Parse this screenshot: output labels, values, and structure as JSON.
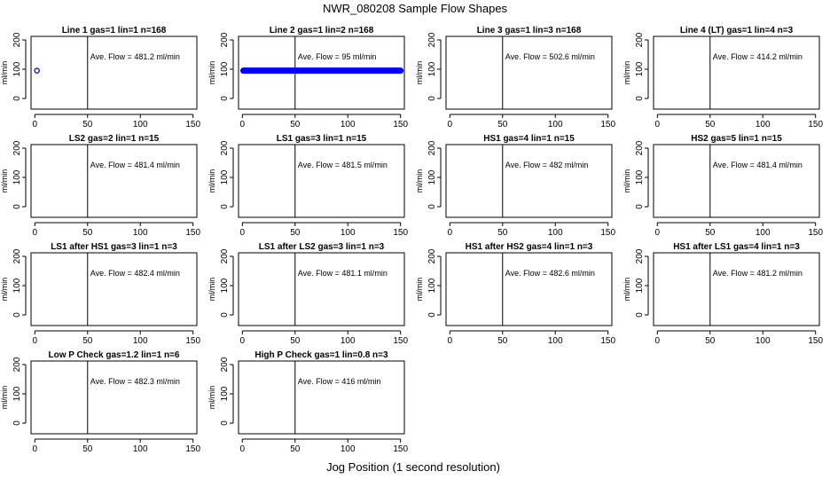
{
  "figure_title": "NWR_080208  Sample Flow Shapes",
  "figure_xlabel": "Jog Position (1 second resolution)",
  "ave_prefix": "Ave. Flow =",
  "ave_unit": "ml/min",
  "panel_ylabel": "ml/min",
  "colors": {
    "points": "#0000ff",
    "axes": "#000000"
  },
  "chart_data": [
    {
      "type": "scatter",
      "title": "Line 1 gas=1 lin=1 n=168",
      "ave_flow": "481.2",
      "xlim": [
        0,
        150
      ],
      "ylim": [
        -30,
        210
      ],
      "xticks": [
        0,
        50,
        100,
        150
      ],
      "yticks": [
        0,
        100,
        200
      ],
      "vline_x": 50,
      "points": [
        {
          "x": 2,
          "y": 95
        }
      ]
    },
    {
      "type": "scatter",
      "title": "Line 2 gas=1 lin=2 n=168",
      "ave_flow": "95",
      "xlim": [
        0,
        150
      ],
      "ylim": [
        -30,
        210
      ],
      "xticks": [
        0,
        50,
        100,
        150
      ],
      "yticks": [
        0,
        100,
        200
      ],
      "vline_x": 50,
      "point_range": {
        "x_from": 1,
        "x_to": 150,
        "y": 95
      }
    },
    {
      "type": "scatter",
      "title": "Line 3 gas=1 lin=3 n=168",
      "ave_flow": "502.6",
      "xlim": [
        0,
        150
      ],
      "ylim": [
        -30,
        210
      ],
      "xticks": [
        0,
        50,
        100,
        150
      ],
      "yticks": [
        0,
        100,
        200
      ],
      "vline_x": 50
    },
    {
      "type": "scatter",
      "title": "Line 4 (LT) gas=1 lin=4 n=3",
      "ave_flow": "414.2",
      "xlim": [
        0,
        150
      ],
      "ylim": [
        -30,
        210
      ],
      "xticks": [
        0,
        50,
        100,
        150
      ],
      "yticks": [
        0,
        100,
        200
      ],
      "vline_x": 50
    },
    {
      "type": "scatter",
      "title": "LS2 gas=2 lin=1 n=15",
      "ave_flow": "481.4",
      "xlim": [
        0,
        150
      ],
      "ylim": [
        -30,
        210
      ],
      "xticks": [
        0,
        50,
        100,
        150
      ],
      "yticks": [
        0,
        100,
        200
      ],
      "vline_x": 50
    },
    {
      "type": "scatter",
      "title": "LS1 gas=3 lin=1 n=15",
      "ave_flow": "481.5",
      "xlim": [
        0,
        150
      ],
      "ylim": [
        -30,
        210
      ],
      "xticks": [
        0,
        50,
        100,
        150
      ],
      "yticks": [
        0,
        100,
        200
      ],
      "vline_x": 50
    },
    {
      "type": "scatter",
      "title": "HS1 gas=4 lin=1 n=15",
      "ave_flow": "482",
      "xlim": [
        0,
        150
      ],
      "ylim": [
        -30,
        210
      ],
      "xticks": [
        0,
        50,
        100,
        150
      ],
      "yticks": [
        0,
        100,
        200
      ],
      "vline_x": 50
    },
    {
      "type": "scatter",
      "title": "HS2 gas=5 lin=1 n=15",
      "ave_flow": "481.4",
      "xlim": [
        0,
        150
      ],
      "ylim": [
        -30,
        210
      ],
      "xticks": [
        0,
        50,
        100,
        150
      ],
      "yticks": [
        0,
        100,
        200
      ],
      "vline_x": 50
    },
    {
      "type": "scatter",
      "title": "LS1 after HS1 gas=3 lin=1 n=3",
      "ave_flow": "482.4",
      "xlim": [
        0,
        150
      ],
      "ylim": [
        -30,
        210
      ],
      "xticks": [
        0,
        50,
        100,
        150
      ],
      "yticks": [
        0,
        100,
        200
      ],
      "vline_x": 50
    },
    {
      "type": "scatter",
      "title": "LS1 after LS2 gas=3 lin=1 n=3",
      "ave_flow": "481.1",
      "xlim": [
        0,
        150
      ],
      "ylim": [
        -30,
        210
      ],
      "xticks": [
        0,
        50,
        100,
        150
      ],
      "yticks": [
        0,
        100,
        200
      ],
      "vline_x": 50
    },
    {
      "type": "scatter",
      "title": "HS1 after HS2 gas=4 lin=1 n=3",
      "ave_flow": "482.6",
      "xlim": [
        0,
        150
      ],
      "ylim": [
        -30,
        210
      ],
      "xticks": [
        0,
        50,
        100,
        150
      ],
      "yticks": [
        0,
        100,
        200
      ],
      "vline_x": 50
    },
    {
      "type": "scatter",
      "title": "HS1 after LS1 gas=4 lin=1 n=3",
      "ave_flow": "481.2",
      "xlim": [
        0,
        150
      ],
      "ylim": [
        -30,
        210
      ],
      "xticks": [
        0,
        50,
        100,
        150
      ],
      "yticks": [
        0,
        100,
        200
      ],
      "vline_x": 50
    },
    {
      "type": "scatter",
      "title": "Low P Check gas=1.2 lin=1 n=6",
      "ave_flow": "482.3",
      "xlim": [
        0,
        150
      ],
      "ylim": [
        -30,
        210
      ],
      "xticks": [
        0,
        50,
        100,
        150
      ],
      "yticks": [
        0,
        100,
        200
      ],
      "vline_x": 50
    },
    {
      "type": "scatter",
      "title": "High P Check gas=1 lin=0.8 n=3",
      "ave_flow": "416",
      "xlim": [
        0,
        150
      ],
      "ylim": [
        -30,
        210
      ],
      "xticks": [
        0,
        50,
        100,
        150
      ],
      "yticks": [
        0,
        100,
        200
      ],
      "vline_x": 50
    }
  ]
}
